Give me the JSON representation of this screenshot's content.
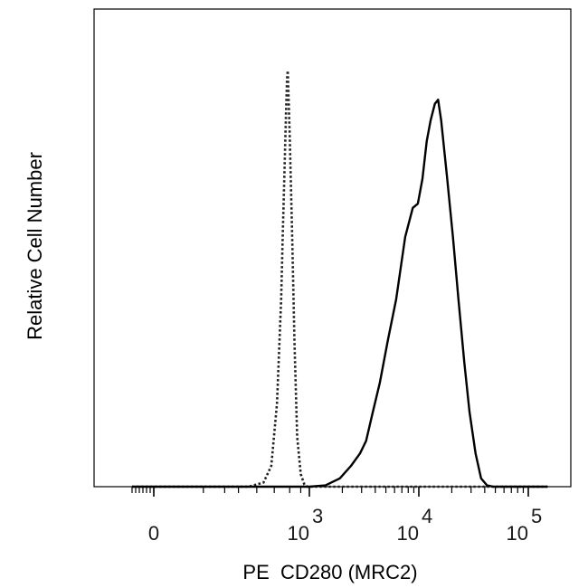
{
  "chart_data": {
    "type": "line",
    "title": "",
    "xlabel": "PE  CD280 (MRC2)",
    "ylabel": "Relative Cell Number",
    "x_scale": "biexponential",
    "xlim": [
      -300,
      150000
    ],
    "ylim": [
      0,
      1
    ],
    "grid": false,
    "legend": "none",
    "x_ticks": [
      {
        "base": "0",
        "exp": "",
        "value": 0
      },
      {
        "base": "10",
        "exp": "3",
        "value": 1000
      },
      {
        "base": "10",
        "exp": "4",
        "value": 10000
      },
      {
        "base": "10",
        "exp": "5",
        "value": 100000
      }
    ],
    "series": [
      {
        "style": "dotted",
        "color": "#222222",
        "points": [
          [
            -300,
            0
          ],
          [
            200,
            0
          ],
          [
            300,
            0.01
          ],
          [
            370,
            0.05
          ],
          [
            430,
            0.2
          ],
          [
            480,
            0.45
          ],
          [
            500,
            0.6
          ],
          [
            530,
            0.8
          ],
          [
            545,
            0.9
          ],
          [
            560,
            0.98
          ],
          [
            570,
            1.0
          ],
          [
            580,
            0.95
          ],
          [
            600,
            0.85
          ],
          [
            640,
            0.6
          ],
          [
            680,
            0.35
          ],
          [
            730,
            0.12
          ],
          [
            800,
            0.03
          ],
          [
            880,
            0.005
          ],
          [
            950,
            0
          ],
          [
            150000,
            0
          ]
        ]
      },
      {
        "style": "solid",
        "color": "#000000",
        "points": [
          [
            -300,
            0
          ],
          [
            1000,
            0
          ],
          [
            1400,
            0.003
          ],
          [
            1900,
            0.02
          ],
          [
            2400,
            0.05
          ],
          [
            2900,
            0.08
          ],
          [
            3300,
            0.11
          ],
          [
            3800,
            0.18
          ],
          [
            4400,
            0.25
          ],
          [
            5200,
            0.35
          ],
          [
            6200,
            0.45
          ],
          [
            7500,
            0.6
          ],
          [
            8800,
            0.67
          ],
          [
            9800,
            0.68
          ],
          [
            10800,
            0.74
          ],
          [
            11800,
            0.83
          ],
          [
            12800,
            0.88
          ],
          [
            14000,
            0.92
          ],
          [
            15000,
            0.93
          ],
          [
            16000,
            0.88
          ],
          [
            18000,
            0.75
          ],
          [
            20500,
            0.6
          ],
          [
            23000,
            0.45
          ],
          [
            26000,
            0.3
          ],
          [
            29000,
            0.18
          ],
          [
            33000,
            0.08
          ],
          [
            37000,
            0.02
          ],
          [
            42000,
            0.003
          ],
          [
            48000,
            0
          ],
          [
            150000,
            0
          ]
        ]
      }
    ]
  }
}
